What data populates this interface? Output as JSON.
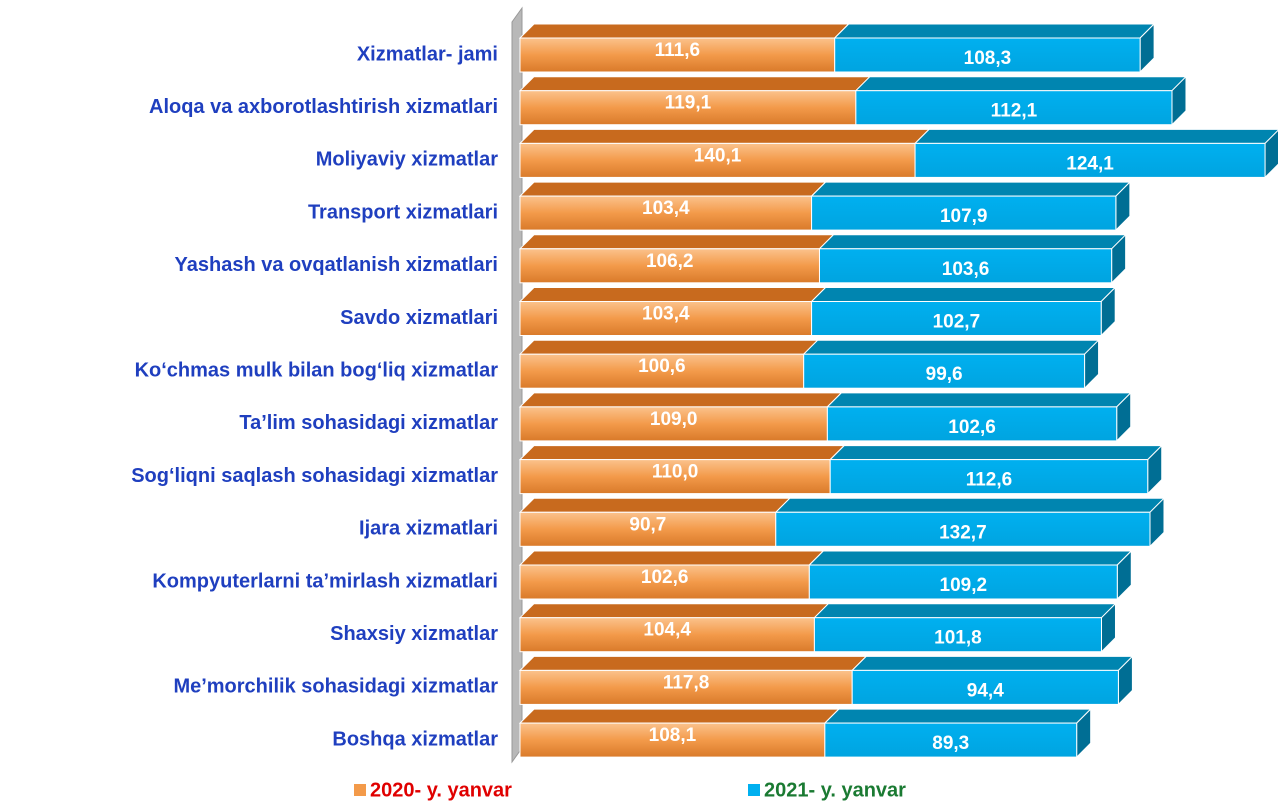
{
  "chart_data": {
    "type": "bar",
    "orientation": "horizontal",
    "stacked": true,
    "categories": [
      "Xizmatlar- jami",
      "Aloqa va axborotlashtirish xizmatlari",
      "Moliyaviy xizmatlar",
      "Transport xizmatlari",
      "Yashash va ovqatlanish xizmatlari",
      "Savdo xizmatlari",
      "Ko‘chmas mulk bilan bog‘liq xizmatlar",
      "Ta’lim sohasidagi xizmatlar",
      "Sog‘liqni saqlash sohasidagi xizmatlar",
      "Ijara xizmatlari",
      "Kompyuterlarni ta’mirlash xizmatlari",
      "Shaxsiy xizmatlar",
      "Me’morchilik sohasidagi xizmatlar",
      "Boshqa xizmatlar"
    ],
    "series": [
      {
        "name": "2020- y. yanvar",
        "color": "#f39a4a",
        "values": [
          111.6,
          119.1,
          140.1,
          103.4,
          106.2,
          103.4,
          100.6,
          109.0,
          110.0,
          90.7,
          102.6,
          104.4,
          117.8,
          108.1
        ],
        "value_labels": [
          "111,6",
          "119,1",
          "140,1",
          "103,4",
          "106,2",
          "103,4",
          "100,6",
          "109,0",
          "110,0",
          "90,7",
          "102,6",
          "104,4",
          "117,8",
          "108,1"
        ]
      },
      {
        "name": "2021- y. yanvar",
        "color": "#00b0f0",
        "values": [
          108.3,
          112.1,
          124.1,
          107.9,
          103.6,
          102.7,
          99.6,
          102.6,
          112.6,
          132.7,
          109.2,
          101.8,
          94.4,
          89.3
        ],
        "value_labels": [
          "108,3",
          "112,1",
          "124,1",
          "107,9",
          "103,6",
          "102,7",
          "99,6",
          "102,6",
          "112,6",
          "132,7",
          "109,2",
          "101,8",
          "94,4",
          "89,3"
        ]
      }
    ],
    "legend": "bottom"
  }
}
